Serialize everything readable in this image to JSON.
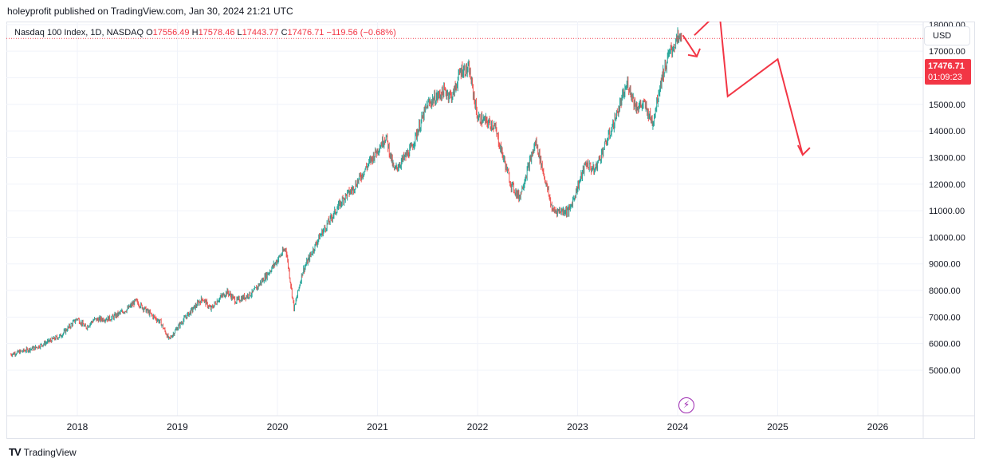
{
  "header": {
    "published": "holeyprofit published on TradingView.com, Jan 30, 2024 21:21 UTC"
  },
  "legend": {
    "symbol": "Nasdaq 100 Index, 1D, NASDAQ",
    "o_label": "O",
    "o_value": "17556.49",
    "h_label": "H",
    "h_value": "17578.46",
    "l_label": "L",
    "l_value": "17443.77",
    "c_label": "C",
    "c_value": "17476.71",
    "change": "−119.56 (−0.68%)"
  },
  "currency_button": "USD",
  "last_price": {
    "price": "17476.71",
    "countdown": "01:09:23"
  },
  "indicator_icon": "lightning-bolt-icon",
  "brand": {
    "logo": "TV",
    "name": "TradingView"
  },
  "colors": {
    "up": "#26a69a",
    "down": "#ef5350",
    "drawing": "#f23645",
    "price_line": "#f23645",
    "bolt": "#9c27b0"
  },
  "chart_data": {
    "type": "candlestick",
    "series": [
      {
        "name": "Nasdaq 100 Index, 1D, NASDAQ"
      }
    ],
    "x": [
      "2017-05",
      "2017-08",
      "2017-11",
      "2018-01",
      "2018-02",
      "2018-03",
      "2018-05",
      "2018-07",
      "2018-08",
      "2018-10",
      "2018-11",
      "2018-12",
      "2019-01",
      "2019-02",
      "2019-04",
      "2019-05",
      "2019-06",
      "2019-07",
      "2019-08",
      "2019-10",
      "2019-12",
      "2020-02",
      "2020-03",
      "2020-04",
      "2020-06",
      "2020-09",
      "2020-10",
      "2020-12",
      "2021-02",
      "2021-03",
      "2021-05",
      "2021-07",
      "2021-09",
      "2021-10",
      "2021-11",
      "2021-12",
      "2022-01",
      "2022-03",
      "2022-05",
      "2022-06",
      "2022-08",
      "2022-10",
      "2022-12",
      "2023-02",
      "2023-03",
      "2023-05",
      "2023-07",
      "2023-08",
      "2023-09",
      "2023-10",
      "2023-11",
      "2023-12",
      "2024-01"
    ],
    "close": [
      5600,
      5850,
      6300,
      6950,
      6600,
      6900,
      6950,
      7300,
      7600,
      7050,
      6800,
      6150,
      6600,
      7000,
      7700,
      7300,
      7700,
      7950,
      7600,
      7900,
      8700,
      9600,
      7300,
      8700,
      10000,
      11500,
      11800,
      12800,
      13800,
      12500,
      13300,
      15000,
      15500,
      15300,
      16300,
      16300,
      14500,
      14200,
      12000,
      11500,
      13600,
      11000,
      11000,
      12800,
      12500,
      14000,
      15800,
      14900,
      15000,
      14300,
      15900,
      16900,
      17476.71
    ],
    "ylim": [
      4500,
      18800
    ],
    "y_ticks": [
      "5000.00",
      "6000.00",
      "7000.00",
      "8000.00",
      "9000.00",
      "10000.00",
      "11000.00",
      "12000.00",
      "13000.00",
      "14000.00",
      "15000.00",
      "16000.00",
      "17000.00",
      "18000.00"
    ],
    "x_ticks": [
      "2018",
      "2019",
      "2020",
      "2021",
      "2022",
      "2023",
      "2024",
      "2025",
      "2026"
    ],
    "last_close": 17476.71,
    "projection_path": [
      {
        "x": "2024-03",
        "y": 17600
      },
      {
        "x": "2024-06",
        "y": 18500
      },
      {
        "x": "2024-07",
        "y": 15300
      },
      {
        "x": "2025-01",
        "y": 16700
      },
      {
        "x": "2025-04",
        "y": 13100
      }
    ],
    "grid": true
  }
}
